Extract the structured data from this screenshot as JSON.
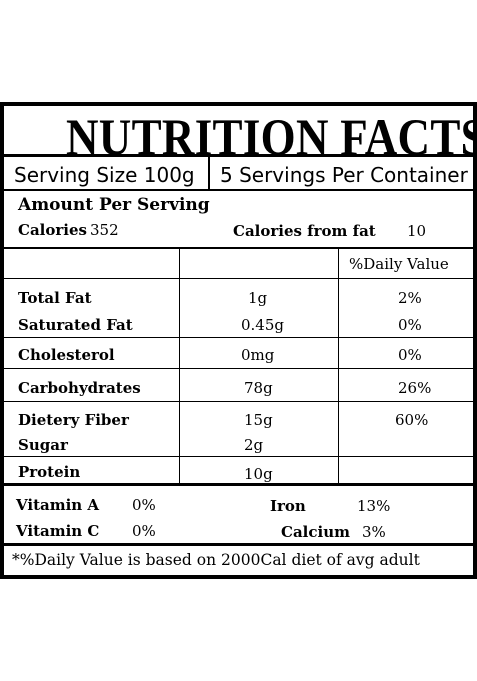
{
  "title": "NUTRITION FACTS",
  "serving": {
    "size": "Serving Size 100g",
    "servings": "5 Servings Per Container"
  },
  "amount_header": "Amount Per Serving",
  "calories": {
    "label": "Calories",
    "value": "352",
    "fat_label": "Calories from fat",
    "fat_value": "10"
  },
  "dv_header": "%Daily Value",
  "nutrients": {
    "total_fat": {
      "name": "Total Fat",
      "amount": "1g",
      "dv": "2%"
    },
    "saturated_fat": {
      "name": "Saturated Fat",
      "amount": "0.45g",
      "dv": "0%"
    },
    "cholesterol": {
      "name": "Cholesterol",
      "amount": "0mg",
      "dv": "0%"
    },
    "carbohydrates": {
      "name": "Carbohydrates",
      "amount": "78g",
      "dv": "26%"
    },
    "fiber": {
      "name": "Dietery Fiber",
      "amount": "15g",
      "dv": "60%"
    },
    "sugar": {
      "name": "Sugar",
      "amount": "2g"
    },
    "protein": {
      "name": "Protein",
      "amount": "10g"
    }
  },
  "vitamins": {
    "vitamin_a": {
      "name": "Vitamin A",
      "value": "0%"
    },
    "vitamin_c": {
      "name": "Vitamin C",
      "value": "0%"
    },
    "iron": {
      "name": "Iron",
      "value": "13%"
    },
    "calcium": {
      "name": "Calcium",
      "value": "3%"
    }
  },
  "footnote": "*%Daily Value is based on 2000Cal diet of avg adult"
}
